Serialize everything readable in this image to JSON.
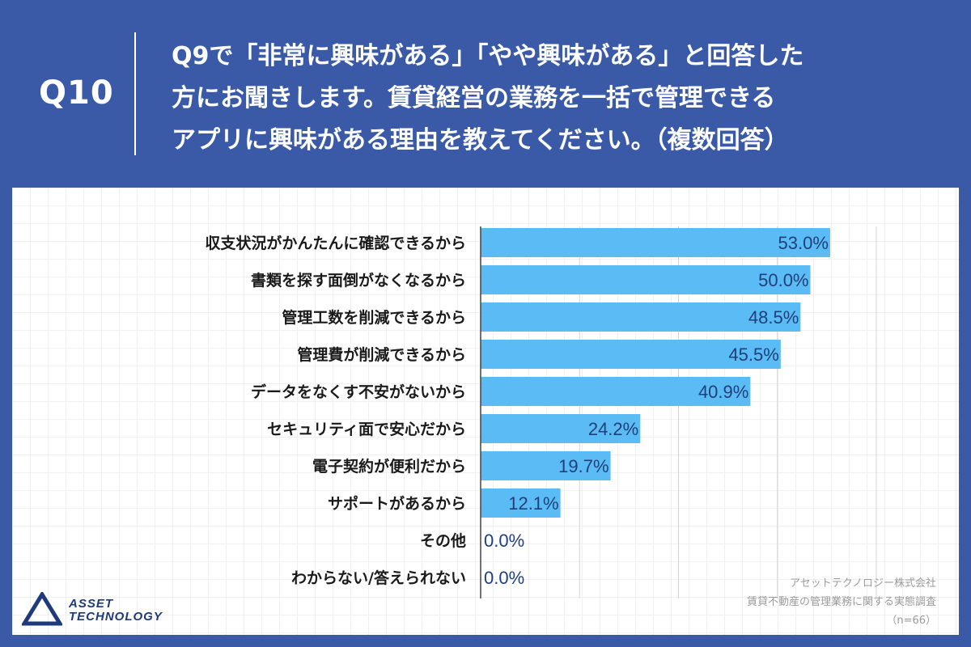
{
  "header": {
    "q_label": "Q10",
    "question_lines": [
      "Q9で「非常に興味がある」「やや興味がある」と回答した",
      "方にお聞きします。賃貸経営の業務を一括で管理できる",
      "アプリに興味がある理由を教えてください。（複数回答）"
    ]
  },
  "chart_data": {
    "type": "bar",
    "orientation": "horizontal",
    "categories": [
      "収支状況がかんたんに確認できるから",
      "書類を探す面倒がなくなるから",
      "管理工数を削減できるから",
      "管理費が削減できるから",
      "データをなくす不安がないから",
      "セキュリティ面で安心だから",
      "電子契約が便利だから",
      "サポートがあるから",
      "その他",
      "わからない/答えられない"
    ],
    "values": [
      53.0,
      50.0,
      48.5,
      45.5,
      40.9,
      24.2,
      19.7,
      12.1,
      0.0,
      0.0
    ],
    "value_labels": [
      "53.0%",
      "50.0%",
      "48.5%",
      "45.5%",
      "40.9%",
      "24.2%",
      "19.7%",
      "12.1%",
      "0.0%",
      "0.0%"
    ],
    "xlim": [
      0,
      70
    ],
    "grid": true,
    "bar_color": "#5bbcf5",
    "gridline_color": "#d4d4d4",
    "axis_color": "#444444"
  },
  "logo": {
    "line1": "ASSET",
    "line2": "TECHNOLOGY"
  },
  "source": {
    "line1": "アセットテクノロジー株式会社",
    "line2": "賃貸不動産の管理業務に関する実態調査",
    "line3": "（n=66）"
  },
  "colors": {
    "background": "#3a5aa8",
    "panel": "#ffffff",
    "logo": "#1f3a7a"
  }
}
